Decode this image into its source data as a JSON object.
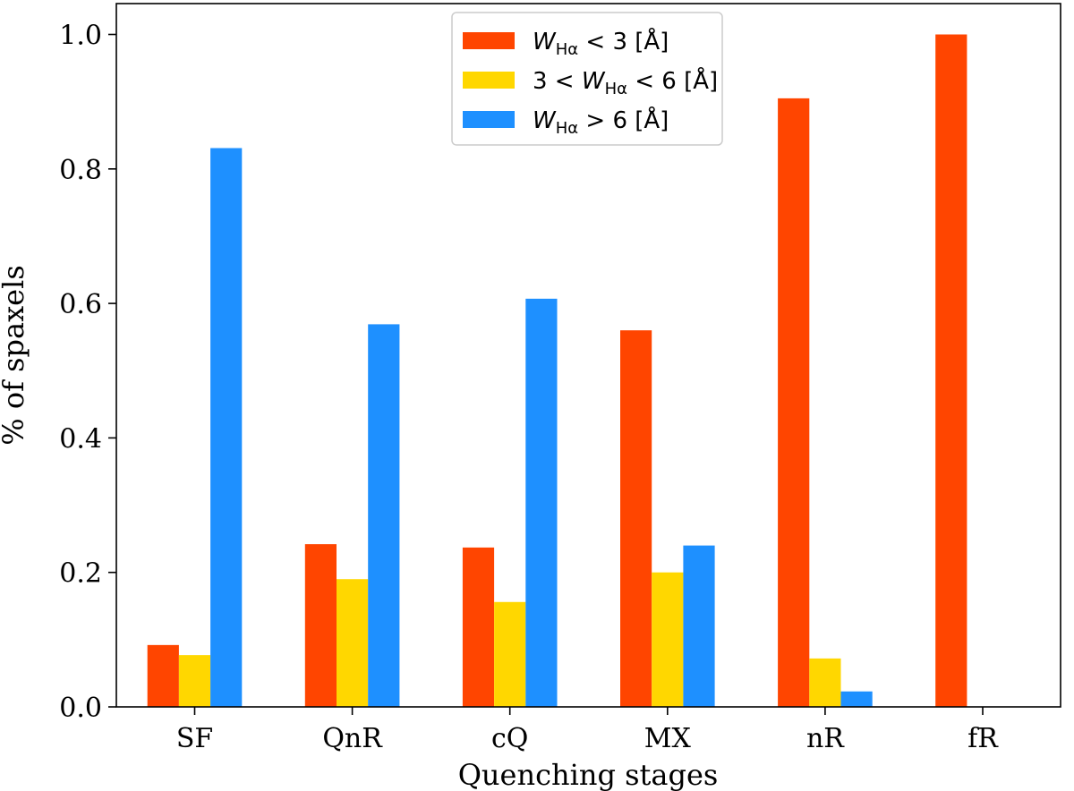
{
  "chart_data": {
    "type": "bar",
    "xlabel": "Quenching stages",
    "ylabel": "% of spaxels",
    "ylim": [
      0,
      1.0
    ],
    "yticks": [
      "0.0",
      "0.2",
      "0.4",
      "0.6",
      "0.8",
      "1.0"
    ],
    "categories": [
      "SF",
      "QnR",
      "cQ",
      "MX",
      "nR",
      "fR"
    ],
    "series": [
      {
        "name": "W_Hα < 3 [Å]",
        "color": "#ff4500",
        "values": [
          0.092,
          0.242,
          0.237,
          0.56,
          0.905,
          1.0
        ]
      },
      {
        "name": "3 < W_Hα < 6 [Å]",
        "color": "#ffd700",
        "values": [
          0.077,
          0.19,
          0.156,
          0.2,
          0.072,
          0.0
        ]
      },
      {
        "name": "W_Hα > 6 [Å]",
        "color": "#1e90ff",
        "values": [
          0.831,
          0.569,
          0.607,
          0.24,
          0.023,
          0.0
        ]
      }
    ],
    "legend": {
      "placement": "top-center",
      "entries": [
        {
          "pre": "",
          "italic": "W",
          "sub": "Hα",
          "post": " < 3 [Å]"
        },
        {
          "pre": "3 < ",
          "italic": "W",
          "sub": "Hα",
          "post": " < 6 [Å]"
        },
        {
          "pre": "",
          "italic": "W",
          "sub": "Hα",
          "post": " > 6 [Å]"
        }
      ]
    }
  }
}
